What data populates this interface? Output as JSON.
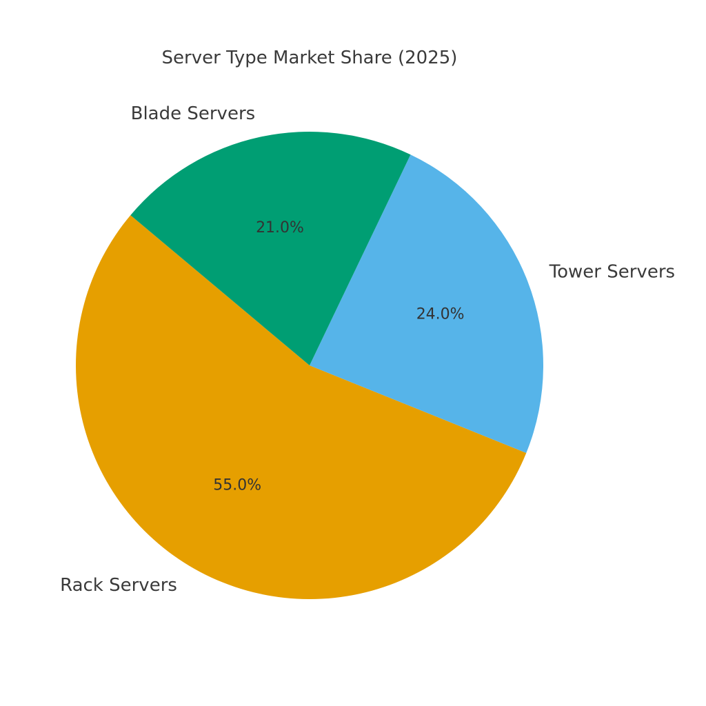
{
  "chart_data": {
    "type": "pie",
    "title": "Server Type Market Share (2025)",
    "labels": [
      "Rack Servers",
      "Tower Servers",
      "Blade Servers"
    ],
    "values": [
      55.0,
      24.0,
      21.0
    ],
    "percent_labels": [
      "55.0%",
      "24.0%",
      "21.0%"
    ],
    "colors": [
      "#E69F00",
      "#56B4E9",
      "#009E73"
    ],
    "start_angle_deg": 140,
    "direction": "counterclockwise",
    "legend": "none"
  }
}
